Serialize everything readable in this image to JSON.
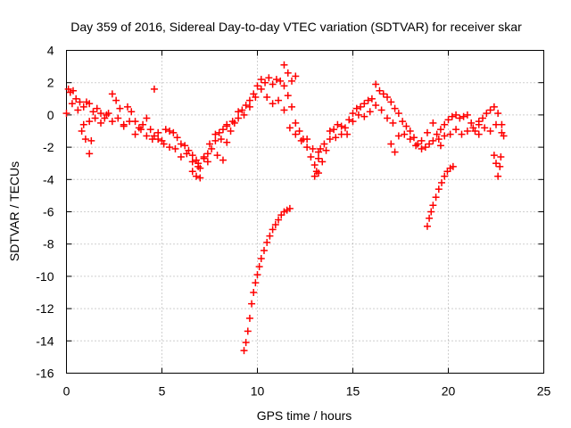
{
  "chart_data": {
    "type": "scatter",
    "title": "Day 359 of 2016, Sidereal Day-to-day VTEC variation (SDTVAR) for receiver skar",
    "xlabel": "GPS time / hours",
    "ylabel": "SDTVAR / TECUs",
    "xlim": [
      0,
      25
    ],
    "ylim": [
      -16,
      4
    ],
    "grid": true,
    "marker": "+",
    "series_color": "#ff0000",
    "x_ticks": [
      0,
      5,
      10,
      15,
      20,
      25
    ],
    "x_tick_labels": [
      "0",
      "5",
      "10",
      "15",
      "20",
      "25"
    ],
    "y_ticks": [
      -16,
      -14,
      -12,
      -10,
      -8,
      -6,
      -4,
      -2,
      0,
      2,
      4
    ],
    "y_tick_labels": [
      "-16",
      "-14",
      "-12",
      "-10",
      "-8",
      "-6",
      "-4",
      "-2",
      "0",
      "2",
      "4"
    ],
    "series": [
      {
        "name": "SDTVAR",
        "x": [
          0.0,
          0.1,
          0.2,
          0.35,
          0.5,
          0.7,
          0.9,
          1.05,
          1.2,
          1.4,
          1.6,
          1.8,
          2.0,
          2.2,
          2.4,
          2.6,
          2.8,
          3.0,
          3.2,
          3.4,
          3.6,
          3.8,
          4.0,
          4.2,
          4.4,
          4.6,
          4.8,
          5.0,
          5.2,
          5.4,
          5.6,
          5.8,
          6.0,
          6.2,
          6.4,
          6.6,
          6.8,
          7.0,
          7.2,
          7.4,
          7.6,
          7.8,
          8.0,
          8.2,
          8.4,
          8.6,
          8.8,
          9.0,
          9.2,
          9.4,
          9.6,
          9.8,
          10.0,
          10.2,
          10.4,
          10.6,
          10.8,
          11.0,
          11.2,
          11.4,
          11.6,
          11.8,
          12.0,
          12.2,
          12.4,
          12.6,
          12.8,
          13.0,
          13.2,
          13.4,
          13.6,
          13.8,
          14.0,
          14.2,
          14.4,
          14.6,
          14.8,
          15.0,
          15.2,
          15.4,
          15.6,
          15.8,
          16.0,
          16.2,
          16.4,
          16.6,
          16.8,
          17.0,
          17.2,
          17.4,
          17.6,
          17.8,
          18.0,
          18.2,
          18.4,
          18.6,
          18.8,
          19.0,
          19.2,
          19.4,
          19.6,
          19.8,
          20.0,
          20.2,
          20.4,
          20.6,
          20.8,
          21.0,
          21.2,
          21.4,
          21.6,
          21.8,
          22.0,
          22.2,
          22.4,
          22.6,
          22.8,
          22.9,
          0.3,
          0.6,
          0.9,
          1.2,
          1.5,
          1.8,
          2.1,
          2.4,
          2.7,
          3.0,
          3.3,
          3.6,
          3.9,
          4.2,
          4.5,
          4.8,
          5.1,
          5.4,
          5.7,
          6.0,
          6.3,
          6.6,
          6.9,
          7.2,
          7.5,
          7.8,
          8.1,
          8.4,
          8.7,
          9.0,
          9.3,
          9.6,
          9.9,
          10.2,
          10.5,
          10.8,
          11.1,
          11.4,
          11.7,
          12.0,
          12.3,
          12.6,
          12.9,
          13.2,
          13.5,
          13.8,
          14.1,
          14.4,
          14.7,
          15.0,
          15.3,
          15.6,
          15.9,
          16.2,
          16.5,
          16.8,
          17.1,
          17.4,
          17.7,
          18.0,
          18.3,
          18.6,
          18.9,
          19.2,
          19.5,
          19.8,
          20.1,
          20.4,
          20.7,
          21.0,
          21.3,
          21.6,
          21.9,
          22.2,
          22.5,
          22.8,
          0.8,
          1.0,
          1.2,
          1.3,
          4.6,
          6.6,
          6.8,
          6.9,
          7.0,
          7.4,
          7.9,
          8.2,
          8.4,
          11.4,
          11.6,
          11.8,
          12.0,
          13.0,
          13.1,
          13.2,
          13.3,
          17.0,
          17.2,
          19.6,
          21.6,
          22.4,
          22.5,
          22.6,
          22.7,
          22.75,
          9.3,
          9.4,
          9.5,
          9.6,
          9.7,
          9.8,
          9.9,
          10.0,
          10.1,
          10.2,
          10.35,
          10.5,
          10.65,
          10.8,
          10.95,
          11.1,
          11.25,
          11.4,
          11.55,
          11.7,
          18.9,
          19.0,
          19.1,
          19.2,
          19.35,
          19.5,
          19.65,
          19.8,
          19.95,
          20.1,
          20.25
        ],
        "y": [
          0.1,
          1.6,
          1.4,
          1.5,
          1.0,
          0.8,
          0.5,
          0.8,
          0.7,
          0.2,
          0.4,
          -0.5,
          -0.2,
          0.1,
          1.3,
          0.9,
          0.4,
          -0.6,
          0.5,
          0.2,
          -0.4,
          -0.8,
          -0.6,
          -0.2,
          -0.9,
          -1.3,
          -1.5,
          -1.6,
          -0.9,
          -1.0,
          -1.1,
          -1.4,
          -1.8,
          -1.9,
          -2.2,
          -2.5,
          -2.8,
          -3.3,
          -2.7,
          -2.4,
          -2.1,
          -1.6,
          -1.1,
          -0.9,
          -0.6,
          -1.0,
          -0.5,
          -0.2,
          0.3,
          0.6,
          0.9,
          1.3,
          1.8,
          2.2,
          2.0,
          2.3,
          1.9,
          2.2,
          2.1,
          1.8,
          1.2,
          0.5,
          -0.5,
          -1.0,
          -1.5,
          -2.0,
          -2.6,
          -3.1,
          -3.6,
          -2.9,
          -2.2,
          -1.5,
          -0.9,
          -0.6,
          -1.2,
          -0.8,
          -0.3,
          0.1,
          0.4,
          0.5,
          0.7,
          0.9,
          1.0,
          1.9,
          1.5,
          1.3,
          1.1,
          0.8,
          0.4,
          0.1,
          -0.4,
          -0.7,
          -1.0,
          -1.4,
          -1.8,
          -2.1,
          -2.0,
          -1.8,
          -1.6,
          -1.2,
          -0.9,
          -0.6,
          -0.3,
          -0.1,
          0.0,
          -0.2,
          -0.1,
          0.0,
          -0.5,
          -1.0,
          -0.6,
          -0.2,
          0.1,
          0.3,
          0.5,
          0.1,
          -0.6,
          -1.3,
          0.7,
          0.3,
          -0.6,
          -0.4,
          -0.2,
          0.1,
          0.0,
          -0.4,
          -0.2,
          -0.7,
          -0.4,
          -1.2,
          -0.9,
          -1.3,
          -1.5,
          -1.1,
          -1.8,
          -2.0,
          -2.1,
          -2.6,
          -2.4,
          -2.9,
          -3.0,
          -2.6,
          -1.8,
          -1.2,
          -1.5,
          -0.7,
          -0.4,
          0.2,
          0.0,
          0.5,
          1.1,
          1.6,
          1.1,
          0.7,
          0.9,
          0.3,
          -0.8,
          -1.2,
          -1.6,
          -1.5,
          -2.1,
          -2.3,
          -1.8,
          -1.0,
          -1.4,
          -0.7,
          -1.2,
          -0.4,
          0.0,
          -0.1,
          0.2,
          0.6,
          0.3,
          -0.2,
          -0.5,
          -1.3,
          -1.2,
          -1.5,
          -1.9,
          -1.6,
          -1.1,
          -0.5,
          -1.5,
          -1.3,
          -1.2,
          -0.9,
          -1.2,
          -1.0,
          -0.8,
          -0.4,
          -0.8,
          -1.0,
          -0.6,
          -1.1,
          -1.0,
          -1.5,
          -2.4,
          -1.6,
          1.6,
          -3.5,
          -3.8,
          -3.2,
          -3.9,
          -2.9,
          -2.5,
          -2.8,
          -1.7,
          3.1,
          2.6,
          2.1,
          2.4,
          -3.8,
          -3.5,
          -2.7,
          -2.1,
          -1.8,
          -2.3,
          -1.9,
          -1.2,
          -2.5,
          -3.0,
          -3.8,
          -3.2,
          -2.6,
          -14.6,
          -14.1,
          -13.4,
          -12.6,
          -11.7,
          -11.0,
          -10.4,
          -9.9,
          -9.4,
          -8.9,
          -8.4,
          -7.9,
          -7.5,
          -7.1,
          -6.8,
          -6.5,
          -6.2,
          -6.0,
          -5.9,
          -5.8,
          -6.9,
          -6.4,
          -6.0,
          -5.6,
          -5.1,
          -4.6,
          -4.2,
          -3.8,
          -3.5,
          -3.3,
          -3.2
        ]
      }
    ]
  }
}
